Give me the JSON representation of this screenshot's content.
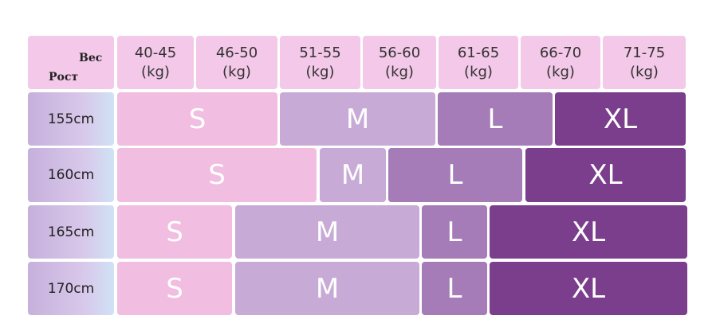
{
  "table": {
    "corner": {
      "weight": "Вес",
      "height": "Рост"
    },
    "weights": [
      {
        "range": "40-45",
        "unit": "(kg)"
      },
      {
        "range": "46-50",
        "unit": "(kg)"
      },
      {
        "range": "51-55",
        "unit": "(kg)"
      },
      {
        "range": "56-60",
        "unit": "(kg)"
      },
      {
        "range": "61-65",
        "unit": "(kg)"
      },
      {
        "range": "66-70",
        "unit": "(kg)"
      },
      {
        "range": "71-75",
        "unit": "(kg)"
      }
    ],
    "rows": [
      {
        "height": "155cm",
        "sizes": [
          "S",
          "M",
          "L",
          "XL"
        ]
      },
      {
        "height": "160cm",
        "sizes": [
          "S",
          "M",
          "L",
          "XL"
        ]
      },
      {
        "height": "165cm",
        "sizes": [
          "S",
          "M",
          "L",
          "XL"
        ]
      },
      {
        "height": "170cm",
        "sizes": [
          "S",
          "M",
          "L",
          "XL"
        ]
      }
    ]
  }
}
